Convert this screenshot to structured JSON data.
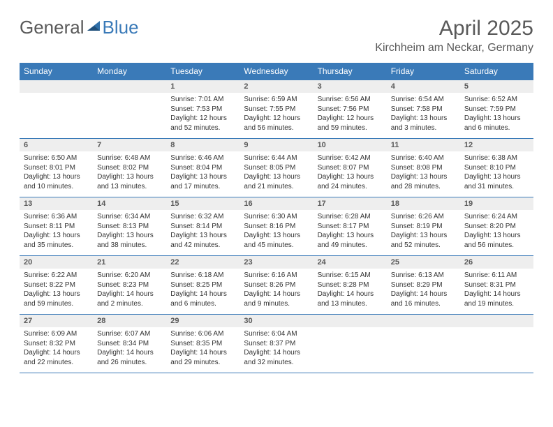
{
  "logo": {
    "textGeneral": "General",
    "textBlue": "Blue"
  },
  "header": {
    "month": "April 2025",
    "location": "Kirchheim am Neckar, Germany"
  },
  "colors": {
    "headerBg": "#3a7ab8",
    "headerText": "#ffffff",
    "dayNumBg": "#eeeeee",
    "border": "#3a7ab8",
    "bodyText": "#333333",
    "mutedText": "#595959",
    "pageBg": "#ffffff"
  },
  "typography": {
    "monthTitleSize": 30,
    "locationSize": 16,
    "weekdaySize": 12,
    "dayNumSize": 11,
    "dayBodySize": 10,
    "fontFamily": "Arial"
  },
  "layout": {
    "columns": 7,
    "rows": 5,
    "widthPx": 792,
    "heightPx": 612
  },
  "weekdays": [
    "Sunday",
    "Monday",
    "Tuesday",
    "Wednesday",
    "Thursday",
    "Friday",
    "Saturday"
  ],
  "weeks": [
    [
      {
        "empty": true
      },
      {
        "empty": true
      },
      {
        "num": "1",
        "sunrise": "Sunrise: 7:01 AM",
        "sunset": "Sunset: 7:53 PM",
        "daylight": "Daylight: 12 hours and 52 minutes."
      },
      {
        "num": "2",
        "sunrise": "Sunrise: 6:59 AM",
        "sunset": "Sunset: 7:55 PM",
        "daylight": "Daylight: 12 hours and 56 minutes."
      },
      {
        "num": "3",
        "sunrise": "Sunrise: 6:56 AM",
        "sunset": "Sunset: 7:56 PM",
        "daylight": "Daylight: 12 hours and 59 minutes."
      },
      {
        "num": "4",
        "sunrise": "Sunrise: 6:54 AM",
        "sunset": "Sunset: 7:58 PM",
        "daylight": "Daylight: 13 hours and 3 minutes."
      },
      {
        "num": "5",
        "sunrise": "Sunrise: 6:52 AM",
        "sunset": "Sunset: 7:59 PM",
        "daylight": "Daylight: 13 hours and 6 minutes."
      }
    ],
    [
      {
        "num": "6",
        "sunrise": "Sunrise: 6:50 AM",
        "sunset": "Sunset: 8:01 PM",
        "daylight": "Daylight: 13 hours and 10 minutes."
      },
      {
        "num": "7",
        "sunrise": "Sunrise: 6:48 AM",
        "sunset": "Sunset: 8:02 PM",
        "daylight": "Daylight: 13 hours and 13 minutes."
      },
      {
        "num": "8",
        "sunrise": "Sunrise: 6:46 AM",
        "sunset": "Sunset: 8:04 PM",
        "daylight": "Daylight: 13 hours and 17 minutes."
      },
      {
        "num": "9",
        "sunrise": "Sunrise: 6:44 AM",
        "sunset": "Sunset: 8:05 PM",
        "daylight": "Daylight: 13 hours and 21 minutes."
      },
      {
        "num": "10",
        "sunrise": "Sunrise: 6:42 AM",
        "sunset": "Sunset: 8:07 PM",
        "daylight": "Daylight: 13 hours and 24 minutes."
      },
      {
        "num": "11",
        "sunrise": "Sunrise: 6:40 AM",
        "sunset": "Sunset: 8:08 PM",
        "daylight": "Daylight: 13 hours and 28 minutes."
      },
      {
        "num": "12",
        "sunrise": "Sunrise: 6:38 AM",
        "sunset": "Sunset: 8:10 PM",
        "daylight": "Daylight: 13 hours and 31 minutes."
      }
    ],
    [
      {
        "num": "13",
        "sunrise": "Sunrise: 6:36 AM",
        "sunset": "Sunset: 8:11 PM",
        "daylight": "Daylight: 13 hours and 35 minutes."
      },
      {
        "num": "14",
        "sunrise": "Sunrise: 6:34 AM",
        "sunset": "Sunset: 8:13 PM",
        "daylight": "Daylight: 13 hours and 38 minutes."
      },
      {
        "num": "15",
        "sunrise": "Sunrise: 6:32 AM",
        "sunset": "Sunset: 8:14 PM",
        "daylight": "Daylight: 13 hours and 42 minutes."
      },
      {
        "num": "16",
        "sunrise": "Sunrise: 6:30 AM",
        "sunset": "Sunset: 8:16 PM",
        "daylight": "Daylight: 13 hours and 45 minutes."
      },
      {
        "num": "17",
        "sunrise": "Sunrise: 6:28 AM",
        "sunset": "Sunset: 8:17 PM",
        "daylight": "Daylight: 13 hours and 49 minutes."
      },
      {
        "num": "18",
        "sunrise": "Sunrise: 6:26 AM",
        "sunset": "Sunset: 8:19 PM",
        "daylight": "Daylight: 13 hours and 52 minutes."
      },
      {
        "num": "19",
        "sunrise": "Sunrise: 6:24 AM",
        "sunset": "Sunset: 8:20 PM",
        "daylight": "Daylight: 13 hours and 56 minutes."
      }
    ],
    [
      {
        "num": "20",
        "sunrise": "Sunrise: 6:22 AM",
        "sunset": "Sunset: 8:22 PM",
        "daylight": "Daylight: 13 hours and 59 minutes."
      },
      {
        "num": "21",
        "sunrise": "Sunrise: 6:20 AM",
        "sunset": "Sunset: 8:23 PM",
        "daylight": "Daylight: 14 hours and 2 minutes."
      },
      {
        "num": "22",
        "sunrise": "Sunrise: 6:18 AM",
        "sunset": "Sunset: 8:25 PM",
        "daylight": "Daylight: 14 hours and 6 minutes."
      },
      {
        "num": "23",
        "sunrise": "Sunrise: 6:16 AM",
        "sunset": "Sunset: 8:26 PM",
        "daylight": "Daylight: 14 hours and 9 minutes."
      },
      {
        "num": "24",
        "sunrise": "Sunrise: 6:15 AM",
        "sunset": "Sunset: 8:28 PM",
        "daylight": "Daylight: 14 hours and 13 minutes."
      },
      {
        "num": "25",
        "sunrise": "Sunrise: 6:13 AM",
        "sunset": "Sunset: 8:29 PM",
        "daylight": "Daylight: 14 hours and 16 minutes."
      },
      {
        "num": "26",
        "sunrise": "Sunrise: 6:11 AM",
        "sunset": "Sunset: 8:31 PM",
        "daylight": "Daylight: 14 hours and 19 minutes."
      }
    ],
    [
      {
        "num": "27",
        "sunrise": "Sunrise: 6:09 AM",
        "sunset": "Sunset: 8:32 PM",
        "daylight": "Daylight: 14 hours and 22 minutes."
      },
      {
        "num": "28",
        "sunrise": "Sunrise: 6:07 AM",
        "sunset": "Sunset: 8:34 PM",
        "daylight": "Daylight: 14 hours and 26 minutes."
      },
      {
        "num": "29",
        "sunrise": "Sunrise: 6:06 AM",
        "sunset": "Sunset: 8:35 PM",
        "daylight": "Daylight: 14 hours and 29 minutes."
      },
      {
        "num": "30",
        "sunrise": "Sunrise: 6:04 AM",
        "sunset": "Sunset: 8:37 PM",
        "daylight": "Daylight: 14 hours and 32 minutes."
      },
      {
        "empty": true
      },
      {
        "empty": true
      },
      {
        "empty": true
      }
    ]
  ]
}
